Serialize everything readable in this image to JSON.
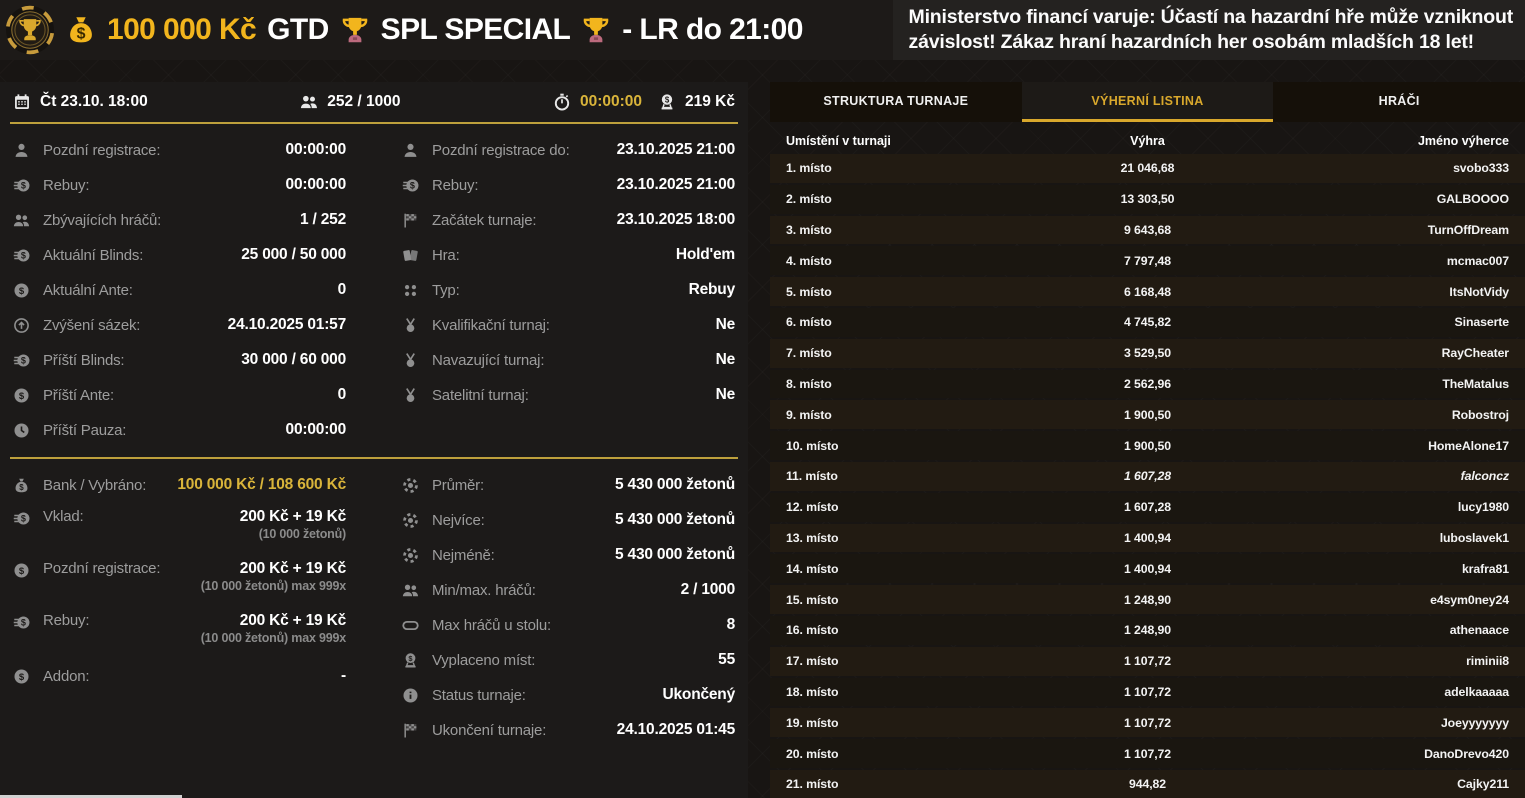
{
  "theme": {
    "accent_gold": "#f2b51d",
    "value_gold": "#d9b43a",
    "tab_active": "#d9a82c"
  },
  "header": {
    "prize": "100 000 Kč",
    "gtd": "GTD",
    "title": "SPL SPECIAL",
    "suffix": "- LR do 21:00",
    "warning_line1": "Ministerstvo financí varuje: Účastí na hazardní hře může vzniknout",
    "warning_line2": "závislost! Zákaz hraní hazardních her osobám mladších 18 let!"
  },
  "summary": {
    "datetime": "Čt 23.10. 18:00",
    "players": "252 / 1000",
    "timer": "00:00:00",
    "fee": "219 Kč"
  },
  "info": {
    "sections": [
      {
        "left": [
          {
            "icon": "person-icon",
            "label": "Pozdní registrace:",
            "value": "00:00:00"
          },
          {
            "icon": "coins-icon",
            "label": "Rebuy:",
            "value": "00:00:00"
          },
          {
            "icon": "people-icon",
            "label": "Zbývajících hráčů:",
            "value": "1 / 252"
          },
          {
            "icon": "coins-icon",
            "label": "Aktuální Blinds:",
            "value": "25 000 / 50 000"
          },
          {
            "icon": "coin-icon",
            "label": "Aktuální Ante:",
            "value": "0"
          },
          {
            "icon": "arrow-up-circle-icon",
            "label": "Zvýšení sázek:",
            "value": "24.10.2025 01:57"
          },
          {
            "icon": "coins-icon",
            "label": "Příští Blinds:",
            "value": "30 000 / 60 000"
          },
          {
            "icon": "coin-icon",
            "label": "Příští Ante:",
            "value": "0"
          },
          {
            "icon": "clock-icon",
            "label": "Příští Pauza:",
            "value": "00:00:00"
          }
        ],
        "right": [
          {
            "icon": "person-icon",
            "label": "Pozdní registrace do:",
            "value": "23.10.2025 21:00"
          },
          {
            "icon": "coins-icon",
            "label": "Rebuy:",
            "value": "23.10.2025 21:00"
          },
          {
            "icon": "checkered-flag-icon",
            "label": "Začátek turnaje:",
            "value": "23.10.2025 18:00"
          },
          {
            "icon": "cards-icon",
            "label": "Hra:",
            "value": "Hold'em"
          },
          {
            "icon": "dots-grid-icon",
            "label": "Typ:",
            "value": "Rebuy"
          },
          {
            "icon": "medal-icon",
            "label": "Kvalifikační turnaj:",
            "value": "Ne"
          },
          {
            "icon": "medal-icon",
            "label": "Navazující turnaj:",
            "value": "Ne"
          },
          {
            "icon": "medal-icon",
            "label": "Satelitní turnaj:",
            "value": "Ne"
          }
        ]
      },
      {
        "left": [
          {
            "icon": "moneybag-icon",
            "label": "Bank / Vybráno:",
            "value": "100 000 Kč / 108 600 Kč",
            "gold": true
          },
          {
            "icon": "coins-icon",
            "label": "Vklad:",
            "value": "200 Kč + 19 Kč",
            "sub": "(10 000 žetonů)"
          },
          {
            "icon": "coin-icon",
            "label": "Pozdní registrace:",
            "value": "200 Kč + 19 Kč",
            "sub": "(10 000 žetonů) max 999x"
          },
          {
            "icon": "coins-icon",
            "label": "Rebuy:",
            "value": "200 Kč + 19 Kč",
            "sub": "(10 000 žetonů) max 999x"
          },
          {
            "icon": "coin-icon",
            "label": "Addon:",
            "value": "-"
          }
        ],
        "right": [
          {
            "icon": "chip-icon",
            "label": "Průměr:",
            "value": "5 430 000 žetonů"
          },
          {
            "icon": "chip-icon",
            "label": "Nejvíce:",
            "value": "5 430 000 žetonů"
          },
          {
            "icon": "chip-icon",
            "label": "Nejméně:",
            "value": "5 430 000 žetonů"
          },
          {
            "icon": "people-icon",
            "label": "Min/max. hráčů:",
            "value": "2 / 1000"
          },
          {
            "icon": "table-icon",
            "label": "Max hráčů u stolu:",
            "value": "8"
          },
          {
            "icon": "payout-icon",
            "label": "Vyplaceno míst:",
            "value": "55"
          },
          {
            "icon": "info-icon",
            "label": "Status turnaje:",
            "value": "Ukončený"
          },
          {
            "icon": "checkered-flag-icon",
            "label": "Ukončení turnaje:",
            "value": "24.10.2025 01:45"
          }
        ]
      }
    ]
  },
  "tabs": [
    {
      "label": "STRUKTURA TURNAJE",
      "active": false
    },
    {
      "label": "VÝHERNÍ LISTINA",
      "active": true
    },
    {
      "label": "HRÁČI",
      "active": false
    }
  ],
  "table": {
    "headers": [
      "Umístění v turnaji",
      "Výhra",
      "Jméno výherce"
    ],
    "rows": [
      {
        "place": "1. místo",
        "win": "21 046,68",
        "name": "svobo333"
      },
      {
        "place": "2. místo",
        "win": "13 303,50",
        "name": "GALBOOOO"
      },
      {
        "place": "3. místo",
        "win": "9 643,68",
        "name": "TurnOffDream"
      },
      {
        "place": "4. místo",
        "win": "7 797,48",
        "name": "mcmac007"
      },
      {
        "place": "5. místo",
        "win": "6 168,48",
        "name": "ItsNotVidy"
      },
      {
        "place": "6. místo",
        "win": "4 745,82",
        "name": "Sinaserte"
      },
      {
        "place": "7. místo",
        "win": "3 529,50",
        "name": "RayCheater"
      },
      {
        "place": "8. místo",
        "win": "2 562,96",
        "name": "TheMatalus"
      },
      {
        "place": "9. místo",
        "win": "1 900,50",
        "name": "Robostroj"
      },
      {
        "place": "10. místo",
        "win": "1 900,50",
        "name": "HomeAlone17"
      },
      {
        "place": "11. místo",
        "win": "1 607,28",
        "name": "falconcz",
        "italic": true
      },
      {
        "place": "12. místo",
        "win": "1 607,28",
        "name": "lucy1980"
      },
      {
        "place": "13. místo",
        "win": "1 400,94",
        "name": "luboslavek1"
      },
      {
        "place": "14. místo",
        "win": "1 400,94",
        "name": "krafra81"
      },
      {
        "place": "15. místo",
        "win": "1 248,90",
        "name": "e4sym0ney24"
      },
      {
        "place": "16. místo",
        "win": "1 248,90",
        "name": "athenaace"
      },
      {
        "place": "17. místo",
        "win": "1 107,72",
        "name": "riminii8"
      },
      {
        "place": "18. místo",
        "win": "1 107,72",
        "name": "adelkaaaaa"
      },
      {
        "place": "19. místo",
        "win": "1 107,72",
        "name": "Joeyyyyyyy"
      },
      {
        "place": "20. místo",
        "win": "1 107,72",
        "name": "DanoDrevo420"
      },
      {
        "place": "21. místo",
        "win": "944,82",
        "name": "Cajky211"
      }
    ]
  }
}
